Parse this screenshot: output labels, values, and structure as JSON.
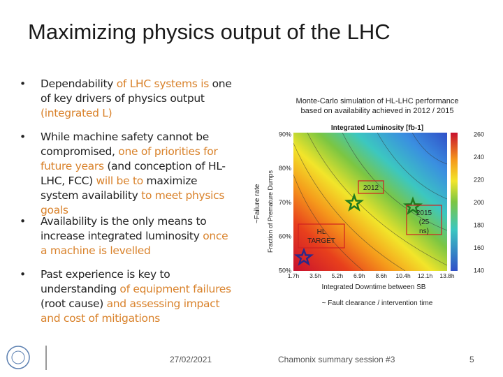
{
  "title": "Maximizing physics output of the LHC",
  "bullets": [
    {
      "segments": [
        {
          "text": "Dependability",
          "style": "plain"
        },
        {
          "text": " of LHC systems is ",
          "style": "accent"
        },
        {
          "text": "one of key drivers of physics output",
          "style": "plain"
        },
        {
          "text": " (integrated L)",
          "style": "accent"
        }
      ]
    },
    {
      "segments": [
        {
          "text": "While machine safety cannot be compromised, ",
          "style": "plain"
        },
        {
          "text": "one of priorities for future years",
          "style": "accent"
        },
        {
          "text": " (and conception of HL-LHC, FCC) ",
          "style": "plain"
        },
        {
          "text": "will be to",
          "style": "accent"
        },
        {
          "text": " maximize system availability ",
          "style": "plain"
        },
        {
          "text": "to meet physics goals",
          "style": "accent"
        }
      ]
    },
    {
      "segments": [
        {
          "text": "Availability is the only means to increase integrated luminosity",
          "style": "plain"
        },
        {
          "text": " once a machine is levelled",
          "style": "accent"
        }
      ]
    },
    {
      "segments": [
        {
          "text": "Past experience is key to understanding",
          "style": "plain"
        },
        {
          "text": " of equipment failures ",
          "style": "accent"
        },
        {
          "text": "(root cause)",
          "style": "plain"
        },
        {
          "text": " and assessing impact and cost of mitigations",
          "style": "accent"
        }
      ]
    }
  ],
  "figure": {
    "caption": [
      "Monte-Carlo simulation of HL-LHC performance",
      "based on availability achieved in 2012 / 2015"
    ],
    "plot_title": "Integrated Luminosity [fb-1]",
    "y_label_outer": "~Failure rate",
    "y_label_inner": "Fraction of Premature Dumps",
    "y_ticks": [
      "90%",
      "80%",
      "70%",
      "60%",
      "50%"
    ],
    "x_ticks": [
      "1.7h",
      "3.5h",
      "5.2h",
      "6.9h",
      "8.6h",
      "10.4h",
      "12.1h",
      "13.8h"
    ],
    "colorbar_ticks": [
      "260",
      "240",
      "220",
      "200",
      "180",
      "160",
      "140"
    ],
    "x_label": "Integrated Downtime between SB",
    "x_label_note": "~ Fault clearance / intervention time",
    "annotations": [
      "2012",
      "2015 (25 ns)",
      "HL TARGET"
    ]
  },
  "footer": {
    "date": "27/02/2021",
    "session": "Chamonix summary session #3",
    "page": "5"
  }
}
